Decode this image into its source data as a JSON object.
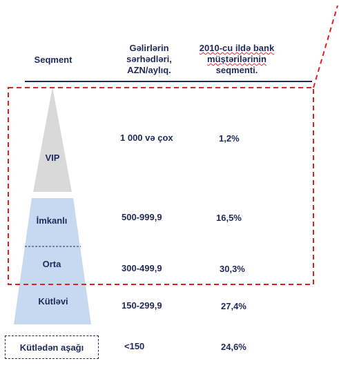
{
  "header": {
    "segment": "Seqment",
    "income_line1": "Gəlirlərin",
    "income_line2": "sərhədləri,",
    "income_line3": "AZN/aylıq.",
    "share_line1": "2010-cu ildə bank",
    "share_line2": "müştərilərinin",
    "share_line3": "seqmenti."
  },
  "rows": [
    {
      "segment": "VIP",
      "income": "1 000 və çox",
      "share": "1,2%"
    },
    {
      "segment": "İmkanlı",
      "income": "500-999,9",
      "share": "16,5%"
    },
    {
      "segment": "Orta",
      "income": "300-499,9",
      "share": "30,3%"
    },
    {
      "segment": "Kütləvi",
      "income": "150-299,9",
      "share": "27,4%"
    },
    {
      "segment": "Kütlədən aşağı",
      "income": "<150",
      "share": "24,6%"
    }
  ],
  "colors": {
    "vip_fill": "#d9d9d9",
    "pyramid_fill": "#c6d9f1",
    "highlight_border": "#e02020",
    "text": "#1f2a5a"
  }
}
